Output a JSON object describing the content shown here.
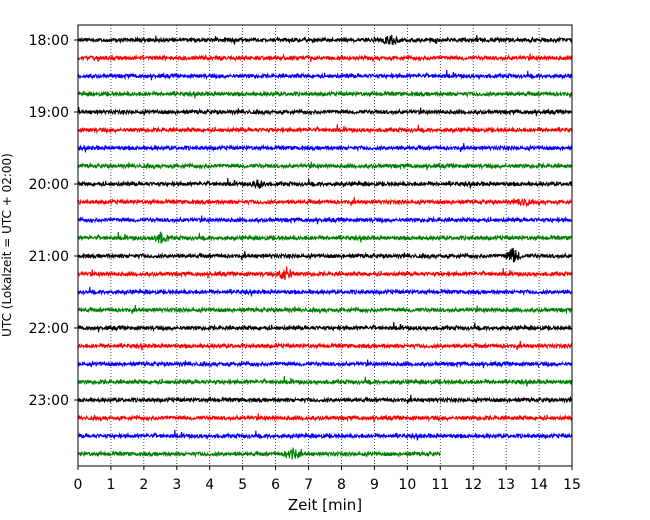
{
  "chart_data": {
    "type": "line",
    "title": "",
    "xlabel": "Zeit  [min]",
    "ylabel": "UTC (Lokalzeit = UTC + 02:00)",
    "xlim": [
      0,
      15
    ],
    "x_ticks": [
      "0",
      "1",
      "2",
      "3",
      "4",
      "5",
      "6",
      "7",
      "8",
      "9",
      "10",
      "11",
      "12",
      "13",
      "14",
      "15"
    ],
    "y_ticks": [
      "18:00",
      "19:00",
      "20:00",
      "21:00",
      "22:00",
      "23:00"
    ],
    "grid": "vertical dotted",
    "colors": [
      "#000000",
      "#ff0000",
      "#0000ff",
      "#008000"
    ],
    "series": [
      {
        "start": "18:00",
        "end_min": 15
      },
      {
        "start": "18:15",
        "end_min": 15
      },
      {
        "start": "18:30",
        "end_min": 15
      },
      {
        "start": "18:45",
        "end_min": 15
      },
      {
        "start": "19:00",
        "end_min": 15
      },
      {
        "start": "19:15",
        "end_min": 15
      },
      {
        "start": "19:30",
        "end_min": 15
      },
      {
        "start": "19:45",
        "end_min": 15
      },
      {
        "start": "20:00",
        "end_min": 15
      },
      {
        "start": "20:15",
        "end_min": 15
      },
      {
        "start": "20:30",
        "end_min": 15
      },
      {
        "start": "20:45",
        "end_min": 15
      },
      {
        "start": "21:00",
        "end_min": 15
      },
      {
        "start": "21:15",
        "end_min": 15
      },
      {
        "start": "21:30",
        "end_min": 15
      },
      {
        "start": "21:45",
        "end_min": 15
      },
      {
        "start": "22:00",
        "end_min": 15
      },
      {
        "start": "22:15",
        "end_min": 15
      },
      {
        "start": "22:30",
        "end_min": 15
      },
      {
        "start": "22:45",
        "end_min": 15
      },
      {
        "start": "23:00",
        "end_min": 15
      },
      {
        "start": "23:15",
        "end_min": 15
      },
      {
        "start": "23:30",
        "end_min": 15
      },
      {
        "start": "23:45",
        "end_min": 11
      }
    ],
    "events": [
      {
        "trace": 0,
        "min": 9.5,
        "amp": 5
      },
      {
        "trace": 8,
        "min": 5.5,
        "amp": 4
      },
      {
        "trace": 9,
        "min": 13.5,
        "amp": 4
      },
      {
        "trace": 11,
        "min": 2.5,
        "amp": 5
      },
      {
        "trace": 12,
        "min": 13.2,
        "amp": 7
      },
      {
        "trace": 13,
        "min": 6.3,
        "amp": 7
      },
      {
        "trace": 23,
        "min": 6.5,
        "amp": 5
      }
    ]
  }
}
